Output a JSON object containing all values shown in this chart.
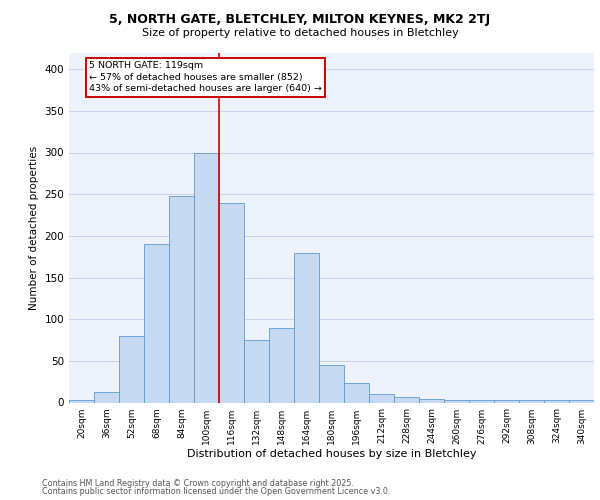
{
  "title1": "5, NORTH GATE, BLETCHLEY, MILTON KEYNES, MK2 2TJ",
  "title2": "Size of property relative to detached houses in Bletchley",
  "xlabel": "Distribution of detached houses by size in Bletchley",
  "ylabel": "Number of detached properties",
  "categories": [
    "20sqm",
    "36sqm",
    "52sqm",
    "68sqm",
    "84sqm",
    "100sqm",
    "116sqm",
    "132sqm",
    "148sqm",
    "164sqm",
    "180sqm",
    "196sqm",
    "212sqm",
    "228sqm",
    "244sqm",
    "260sqm",
    "276sqm",
    "292sqm",
    "308sqm",
    "324sqm",
    "340sqm"
  ],
  "values": [
    3,
    13,
    80,
    190,
    248,
    300,
    240,
    75,
    90,
    180,
    45,
    23,
    10,
    7,
    4,
    3,
    3,
    3,
    3,
    3,
    3
  ],
  "bar_color": "#c6d9f0",
  "bar_edge_color": "#5b9bd5",
  "bar_width": 1.0,
  "vline_color": "#cc0000",
  "annotation_text": "5 NORTH GATE: 119sqm\n← 57% of detached houses are smaller (852)\n43% of semi-detached houses are larger (640) →",
  "annotation_box_color": "#ffffff",
  "annotation_box_edge": "#cc0000",
  "ylim": [
    0,
    420
  ],
  "yticks": [
    0,
    50,
    100,
    150,
    200,
    250,
    300,
    350,
    400
  ],
  "footer1": "Contains HM Land Registry data © Crown copyright and database right 2025.",
  "footer2": "Contains public sector information licensed under the Open Government Licence v3.0.",
  "bg_color": "#eef2fb",
  "grid_color": "#c8d4ee"
}
